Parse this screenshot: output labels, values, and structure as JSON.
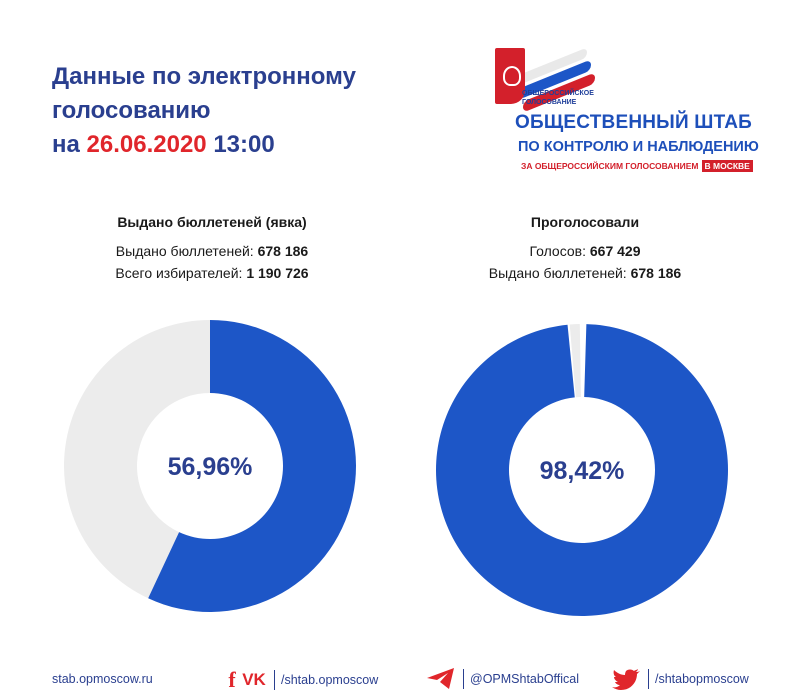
{
  "title": {
    "line1": "Данные по электронному",
    "line2": "голосованию",
    "prefix": "на",
    "date": "26.06.2020",
    "time": "13:00"
  },
  "logo": {
    "small_line1": "ОБЩЕРОССИЙСКОЕ",
    "small_line2": "ГОЛОСОВАНИЕ",
    "line1": "ОБЩЕСТВЕННЫЙ ШТАБ",
    "line2": "ПО КОНТРОЛЮ И НАБЛЮДЕНИЮ",
    "line3": "ЗА ОБЩЕРОССИЙСКИМ ГОЛОСОВАНИЕМ",
    "badge": "В МОСКВЕ"
  },
  "chart_data": [
    {
      "type": "pie",
      "title": "Выдано бюллетеней (явка)",
      "rows": [
        {
          "label": "Выдано бюллетеней:",
          "value": "678 186"
        },
        {
          "label": "Всего избирателей:",
          "value": "1 190 726"
        }
      ],
      "center_label": "56,96%",
      "fraction": 0.5696,
      "colors": {
        "fill": "#1d56c7",
        "rest": "#ececec"
      }
    },
    {
      "type": "pie",
      "title": "Проголосовали",
      "rows": [
        {
          "label": "Голосов:",
          "value": "667 429"
        },
        {
          "label": "Выдано бюллетеней:",
          "value": "678 186"
        }
      ],
      "center_label": "98,42%",
      "fraction": 0.9842,
      "colors": {
        "fill": "#1d56c7",
        "rest": "#ececec"
      }
    }
  ],
  "footer": {
    "site": "stab.opmoscow.ru",
    "social": [
      {
        "icon": "facebook-vk-icon",
        "handle": "/shtab.opmoscow"
      },
      {
        "icon": "telegram-icon",
        "handle": "@OPMShtabOffical"
      },
      {
        "icon": "twitter-icon",
        "handle": "/shtabopmoscow"
      }
    ],
    "icon_glyphs": {
      "fb": "f",
      "vk": "VK"
    }
  },
  "colors": {
    "accent_blue": "#2a3f8f",
    "accent_red": "#e0262b",
    "donut_blue": "#1d56c7"
  }
}
